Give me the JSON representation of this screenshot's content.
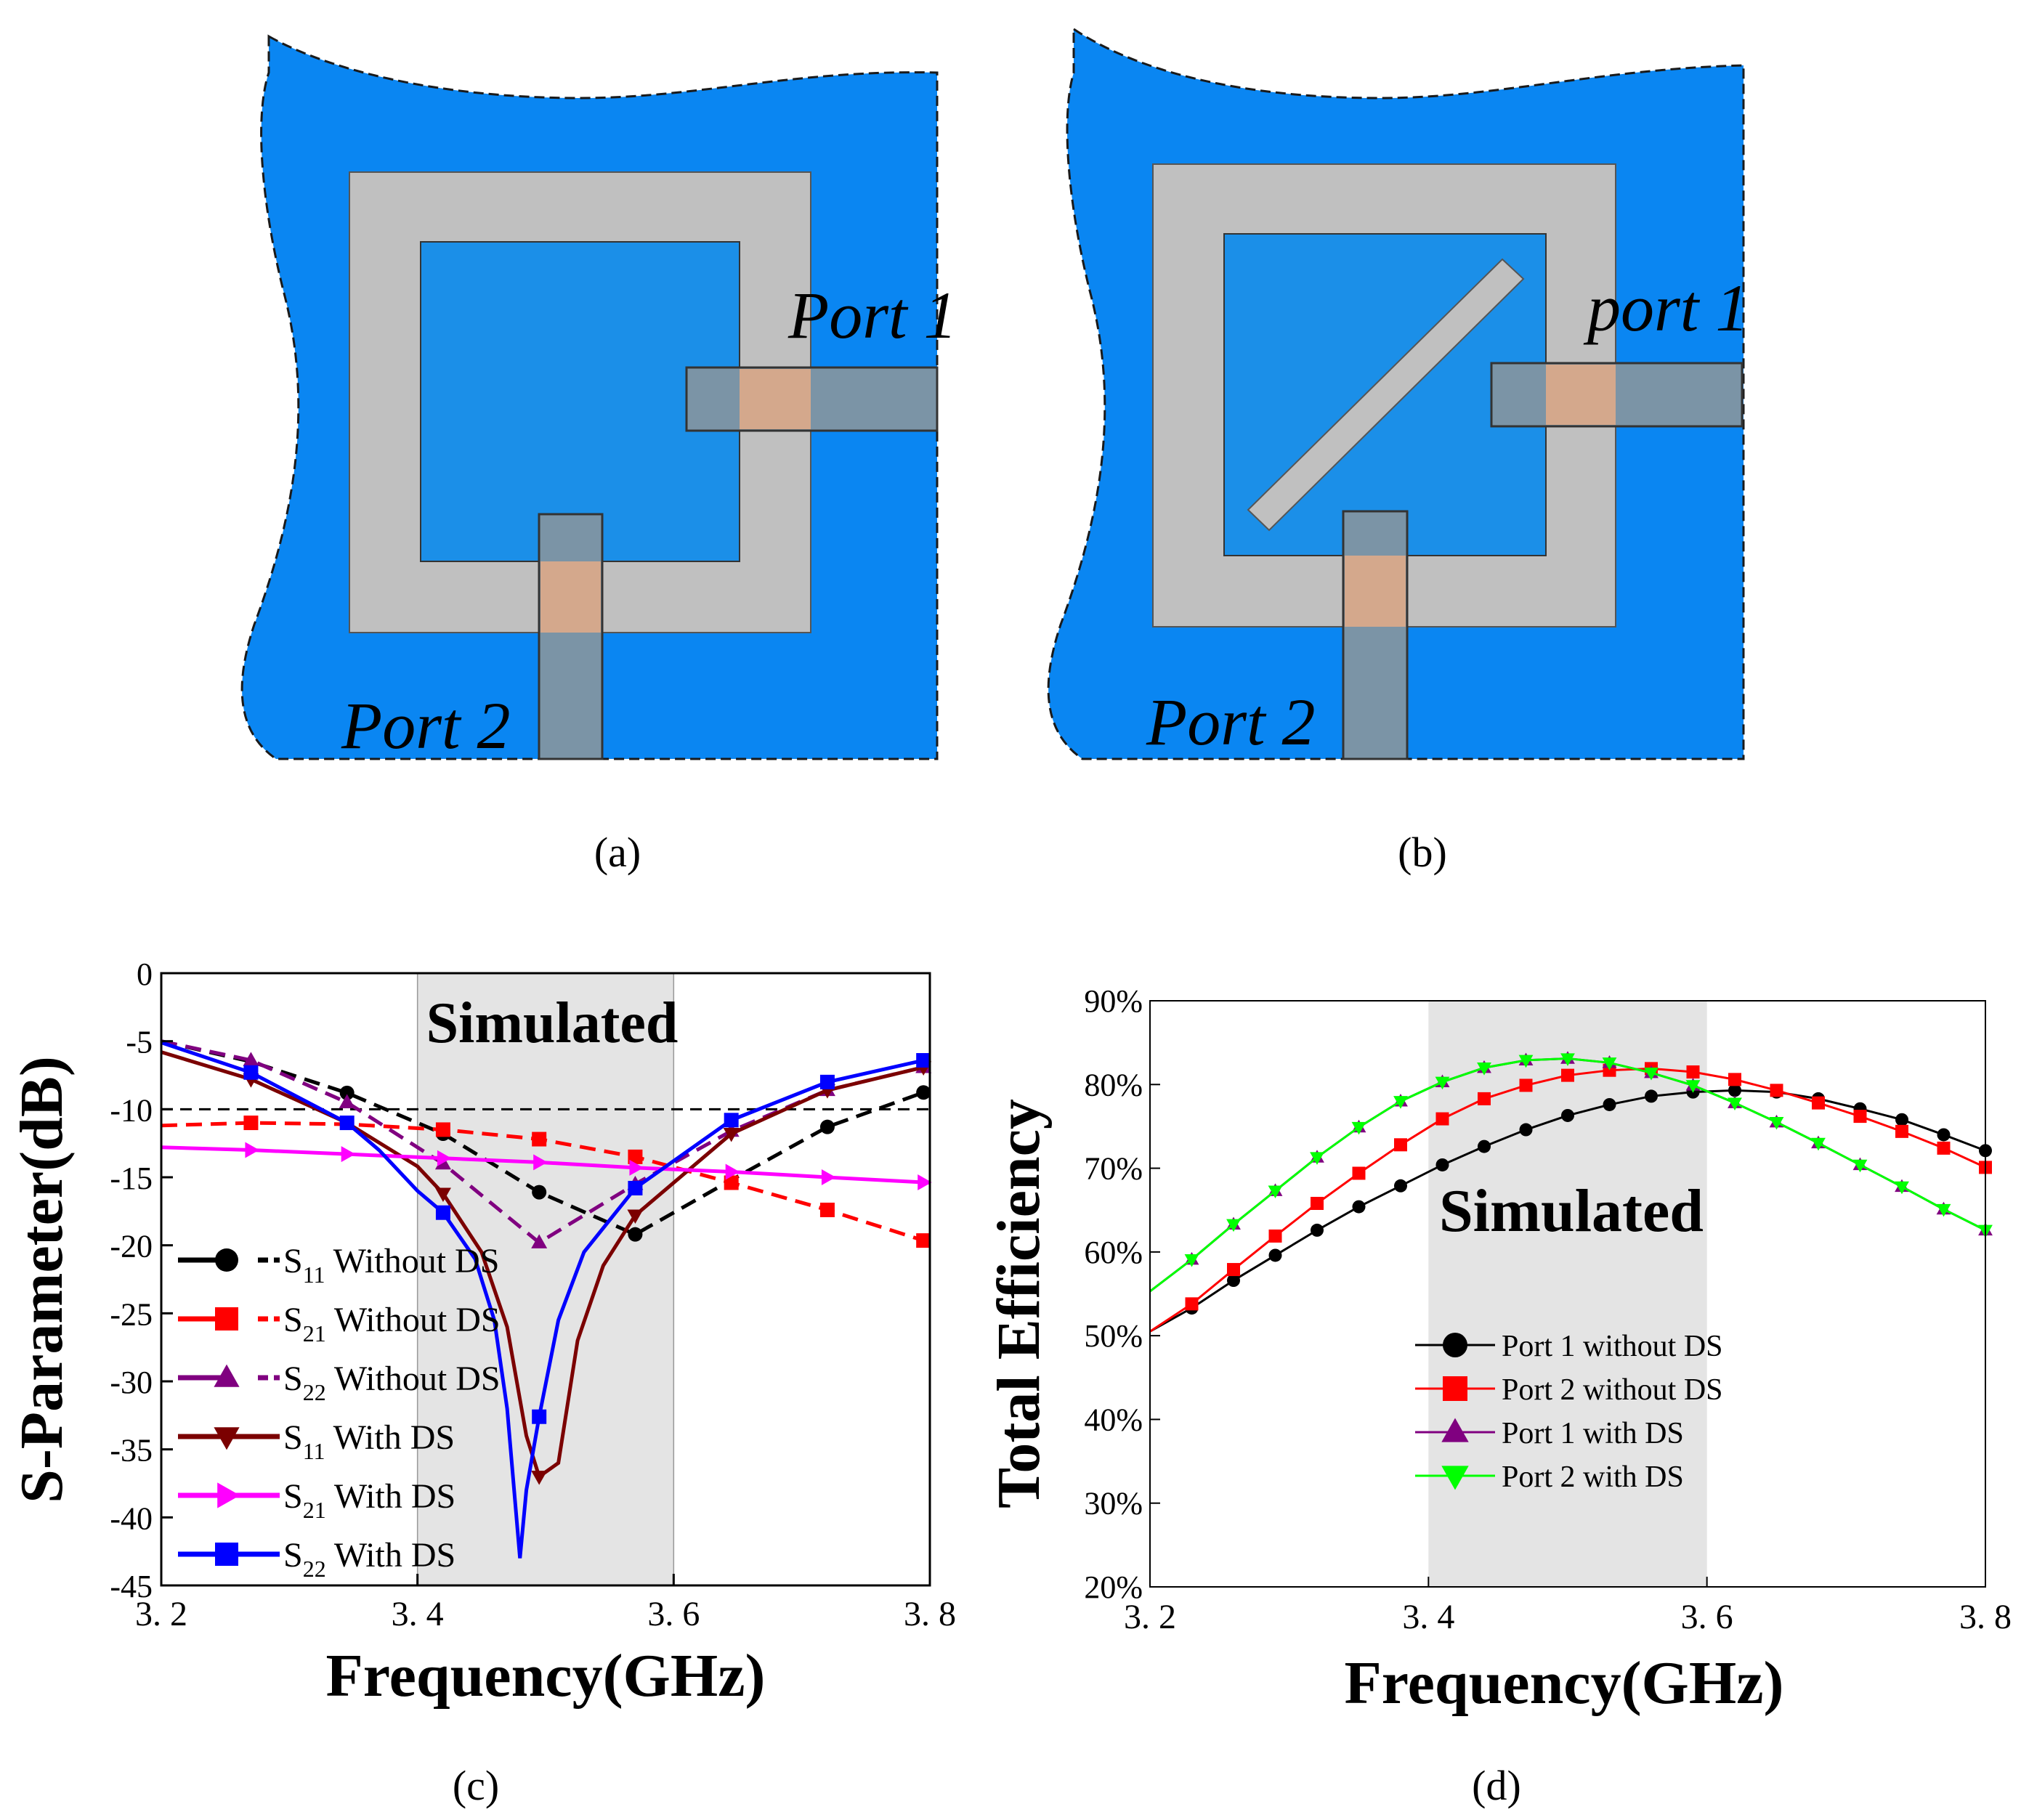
{
  "panels": {
    "a": {
      "label": "(a)",
      "port1": "Port 1",
      "port2": "Port 2"
    },
    "b": {
      "label": "(b)",
      "port1": "port 1",
      "port2": "Port 2"
    },
    "c": {
      "label": "(c)"
    },
    "d": {
      "label": "(d)"
    }
  },
  "colors": {
    "ground": "#0a86f2",
    "ring": "#c0c0c0",
    "inner": "#1b8fe8",
    "feed": "#7b94a6",
    "overlap": "#d9a98a",
    "band": "#e4e4e4"
  },
  "chart_data": [
    {
      "id": "c",
      "type": "line",
      "title": "Simulated",
      "xlabel": "Frequency(GHz)",
      "ylabel": "S-Parameter(dB)",
      "xlim": [
        3.2,
        3.8
      ],
      "ylim": [
        -45,
        0
      ],
      "xticks": [
        3.2,
        3.4,
        3.6,
        3.8
      ],
      "xtick_labels": [
        "3. 2",
        "3. 4",
        "3. 6",
        "3. 8"
      ],
      "yticks": [
        0,
        -5,
        -10,
        -15,
        -20,
        -25,
        -30,
        -35,
        -40,
        -45
      ],
      "ytick_labels": [
        "0",
        "-5",
        "-10",
        "-15",
        "-20",
        "-25",
        "-30",
        "-35",
        "-40",
        "-45"
      ],
      "band": [
        3.4,
        3.6
      ],
      "reference_line": -10,
      "legend": [
        {
          "s": "S",
          "sub": "11",
          "text": " Without DS"
        },
        {
          "s": "S",
          "sub": "21",
          "text": " Without DS"
        },
        {
          "s": "S",
          "sub": "22",
          "text": " Without DS"
        },
        {
          "s": "S",
          "sub": "11",
          "text": " With DS"
        },
        {
          "s": "S",
          "sub": "21",
          "text": " With DS"
        },
        {
          "s": "S",
          "sub": "22",
          "text": " With DS"
        }
      ],
      "series": [
        {
          "name": "S11 Without DS",
          "color": "#000000",
          "dash": true,
          "marker": "circle",
          "x": [
            3.2,
            3.27,
            3.345,
            3.42,
            3.495,
            3.57,
            3.645,
            3.72,
            3.8
          ],
          "y": [
            -5,
            -6.5,
            -8.8,
            -11.8,
            -16.1,
            -19.2,
            -15.2,
            -11.3,
            -8.6
          ],
          "mx": [
            3.345,
            3.42,
            3.495,
            3.57,
            3.72,
            3.795
          ]
        },
        {
          "name": "S21 Without DS",
          "color": "#ff0000",
          "dash": true,
          "marker": "square",
          "x": [
            3.2,
            3.27,
            3.345,
            3.42,
            3.495,
            3.57,
            3.645,
            3.72,
            3.8
          ],
          "y": [
            -11.2,
            -11.0,
            -11.1,
            -11.5,
            -12.2,
            -13.5,
            -15.4,
            -17.4,
            -19.8
          ],
          "mx": [
            3.27,
            3.42,
            3.495,
            3.57,
            3.645,
            3.72,
            3.795
          ]
        },
        {
          "name": "S22 Without DS",
          "color": "#800080",
          "dash": true,
          "marker": "triangle",
          "x": [
            3.2,
            3.27,
            3.345,
            3.42,
            3.495,
            3.57,
            3.645,
            3.72,
            3.8
          ],
          "y": [
            -5,
            -6.4,
            -9.5,
            -14.0,
            -19.8,
            -15.5,
            -11.6,
            -8.6,
            -6.8
          ],
          "mx": [
            3.27,
            3.345,
            3.42,
            3.495,
            3.57,
            3.645,
            3.72,
            3.795
          ]
        },
        {
          "name": "S11 With DS",
          "color": "#7b0000",
          "dash": false,
          "marker": "triangle-down",
          "x": [
            3.2,
            3.27,
            3.345,
            3.4,
            3.42,
            3.45,
            3.47,
            3.485,
            3.495,
            3.51,
            3.525,
            3.545,
            3.57,
            3.645,
            3.72,
            3.8
          ],
          "y": [
            -5.8,
            -7.8,
            -11.0,
            -14.2,
            -16.2,
            -20.5,
            -26.0,
            -34.0,
            -37.0,
            -36.0,
            -27.0,
            -21.5,
            -17.8,
            -11.8,
            -8.6,
            -6.8
          ],
          "mx": [
            3.27,
            3.42,
            3.495,
            3.57,
            3.645,
            3.72,
            3.795
          ]
        },
        {
          "name": "S21 With DS",
          "color": "#ff00ff",
          "dash": false,
          "marker": "triangle-right",
          "x": [
            3.2,
            3.27,
            3.345,
            3.42,
            3.495,
            3.57,
            3.645,
            3.72,
            3.8
          ],
          "y": [
            -12.8,
            -13.0,
            -13.3,
            -13.6,
            -13.9,
            -14.3,
            -14.6,
            -15.0,
            -15.4
          ],
          "mx": [
            3.27,
            3.345,
            3.42,
            3.495,
            3.57,
            3.645,
            3.72,
            3.795
          ]
        },
        {
          "name": "S22 With DS",
          "color": "#0000ff",
          "dash": false,
          "marker": "square",
          "x": [
            3.2,
            3.27,
            3.345,
            3.37,
            3.4,
            3.42,
            3.445,
            3.46,
            3.47,
            3.48,
            3.485,
            3.495,
            3.51,
            3.53,
            3.57,
            3.645,
            3.72,
            3.8
          ],
          "y": [
            -5.1,
            -7.3,
            -11.0,
            -13.0,
            -16.0,
            -17.6,
            -21.0,
            -25.5,
            -32.0,
            -43.0,
            -38.0,
            -32.6,
            -25.5,
            -20.5,
            -15.8,
            -10.8,
            -8.0,
            -6.3
          ],
          "mx": [
            3.27,
            3.345,
            3.42,
            3.495,
            3.57,
            3.645,
            3.72,
            3.795
          ]
        }
      ]
    },
    {
      "id": "d",
      "type": "line",
      "title": "Simulated",
      "xlabel": "Frequency(GHz)",
      "ylabel": "Total Efficiency",
      "xlim": [
        3.2,
        3.8
      ],
      "ylim": [
        20,
        90
      ],
      "xticks": [
        3.2,
        3.4,
        3.6,
        3.8
      ],
      "xtick_labels": [
        "3. 2",
        "3. 4",
        "3. 6",
        "3. 8"
      ],
      "yticks": [
        20,
        30,
        40,
        50,
        60,
        70,
        80,
        90
      ],
      "ytick_labels": [
        "20%",
        "30%",
        "40%",
        "50%",
        "60%",
        "70%",
        "80%",
        "90%"
      ],
      "band": [
        3.4,
        3.6
      ],
      "legend": [
        "Port 1 without DS",
        "Port 2 without DS",
        "Port 1 with DS",
        "Port 2 with DS"
      ],
      "series": [
        {
          "name": "Port 1 without DS",
          "color": "#000000",
          "marker": "circle",
          "x": [
            3.2,
            3.23,
            3.26,
            3.29,
            3.32,
            3.35,
            3.38,
            3.41,
            3.44,
            3.47,
            3.5,
            3.53,
            3.56,
            3.59,
            3.62,
            3.65,
            3.68,
            3.71,
            3.74,
            3.77,
            3.8
          ],
          "y": [
            50.5,
            53.3,
            56.6,
            59.6,
            62.6,
            65.4,
            67.9,
            70.4,
            72.6,
            74.6,
            76.3,
            77.6,
            78.6,
            79.1,
            79.3,
            79.1,
            78.3,
            77.1,
            75.8,
            74.0,
            72.1
          ],
          "mx_from": 1
        },
        {
          "name": "Port 2 without DS",
          "color": "#ff0000",
          "marker": "square",
          "x": [
            3.2,
            3.23,
            3.26,
            3.29,
            3.32,
            3.35,
            3.38,
            3.41,
            3.44,
            3.47,
            3.5,
            3.53,
            3.56,
            3.59,
            3.62,
            3.65,
            3.68,
            3.71,
            3.74,
            3.77,
            3.8
          ],
          "y": [
            50.5,
            53.8,
            57.9,
            61.9,
            65.8,
            69.4,
            72.8,
            75.9,
            78.3,
            79.9,
            81.1,
            81.7,
            81.9,
            81.5,
            80.6,
            79.3,
            77.8,
            76.2,
            74.4,
            72.4,
            70.1
          ],
          "mx_from": 1
        },
        {
          "name": "Port 1 with DS",
          "color": "#800080",
          "marker": "triangle",
          "x": [
            3.2,
            3.23,
            3.26,
            3.29,
            3.32,
            3.35,
            3.38,
            3.41,
            3.44,
            3.47,
            3.5,
            3.53,
            3.56,
            3.59,
            3.62,
            3.65,
            3.68,
            3.71,
            3.74,
            3.77,
            3.8
          ],
          "y": [
            55.3,
            59.1,
            63.3,
            67.3,
            71.3,
            74.9,
            78.0,
            80.3,
            82.0,
            82.9,
            83.1,
            82.6,
            81.4,
            79.9,
            77.8,
            75.5,
            73.0,
            70.4,
            67.8,
            65.1,
            62.6
          ],
          "mx_from": 1
        },
        {
          "name": "Port 2 with DS",
          "color": "#00ff00",
          "marker": "triangle-down",
          "x": [
            3.2,
            3.23,
            3.26,
            3.29,
            3.32,
            3.35,
            3.38,
            3.41,
            3.44,
            3.47,
            3.5,
            3.53,
            3.56,
            3.59,
            3.62,
            3.65,
            3.68,
            3.71,
            3.74,
            3.77,
            3.8
          ],
          "y": [
            55.3,
            59.1,
            63.3,
            67.3,
            71.3,
            74.9,
            78.0,
            80.3,
            82.0,
            82.9,
            83.1,
            82.6,
            81.4,
            79.9,
            77.8,
            75.5,
            73.0,
            70.4,
            67.8,
            65.1,
            62.6
          ],
          "mx_from": 1
        }
      ]
    }
  ]
}
